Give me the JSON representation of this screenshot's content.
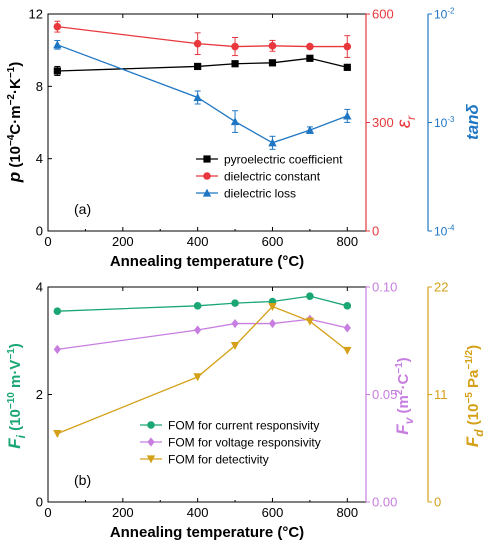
{
  "chart_data": [
    {
      "panel_label": "(a)",
      "type": "line",
      "x": [
        25,
        400,
        500,
        600,
        700,
        800
      ],
      "xlim": [
        0,
        850
      ],
      "xticks": [
        "0",
        "200",
        "400",
        "600",
        "800"
      ],
      "xlabel": "Annealing temperature (°C)",
      "axes": {
        "left": {
          "label": "p (10⁻⁴C·m⁻²·K⁻¹)",
          "ylim": [
            0,
            12
          ],
          "ticks": [
            "0",
            "4",
            "8",
            "12"
          ],
          "color": "#000000"
        },
        "right1": {
          "label": "εr",
          "ylim": [
            0,
            600
          ],
          "ticks": [
            "0",
            "300",
            "600"
          ],
          "color": "#e8383d"
        },
        "right2": {
          "label": "tanδ",
          "scale": "log",
          "ylim": [
            0.0001,
            0.01
          ],
          "ticks": [
            "10⁻⁴",
            "10⁻³",
            "10⁻²"
          ],
          "color": "#1f77c4"
        }
      },
      "series": [
        {
          "name": "pyroelectric coefficient",
          "axis": "left",
          "color": "#000000",
          "marker": "square",
          "values": [
            8.85,
            9.1,
            9.25,
            9.3,
            9.55,
            9.05
          ],
          "errors": [
            0.25,
            0.1,
            0.1,
            0.1,
            0.1,
            0.1
          ]
        },
        {
          "name": "dielectric constant",
          "axis": "right1",
          "color": "#e8383d",
          "marker": "circle",
          "values": [
            565,
            518,
            510,
            512,
            510,
            510
          ],
          "errors": [
            15,
            30,
            25,
            15,
            5,
            30
          ]
        },
        {
          "name": "dielectric loss",
          "axis": "right2",
          "color": "#1f77c4",
          "marker": "triangle-up",
          "values": [
            0.0052,
            0.0017,
            0.00102,
            0.00065,
            0.00085,
            0.00115
          ],
          "errors_log": [
            0.04,
            0.06,
            0.1,
            0.06,
            0.03,
            0.06
          ]
        }
      ]
    },
    {
      "panel_label": "(b)",
      "type": "line",
      "x": [
        25,
        400,
        500,
        600,
        700,
        800
      ],
      "xlim": [
        0,
        850
      ],
      "xticks": [
        "0",
        "200",
        "400",
        "600",
        "800"
      ],
      "xlabel": "Annealing temperature (°C)",
      "axes": {
        "left": {
          "label": "Fi (10⁻¹⁰ m·V⁻¹)",
          "ylim": [
            0,
            4
          ],
          "ticks": [
            "0",
            "2",
            "4"
          ],
          "color": "#1aa774"
        },
        "right1": {
          "label": "Fv (m²·C⁻¹)",
          "ylim": [
            0,
            0.1
          ],
          "ticks": [
            "0.00",
            "0.05",
            "0.10"
          ],
          "color": "#c77ee0"
        },
        "right2": {
          "label": "Fd (10⁻⁵ Pa⁻¹ᐟ²)",
          "ylim": [
            0,
            22
          ],
          "ticks": [
            "0",
            "11",
            "22"
          ],
          "color": "#d4a017"
        }
      },
      "series": [
        {
          "name": "FOM for current responsivity",
          "axis": "left",
          "color": "#1aa774",
          "marker": "circle",
          "values": [
            3.55,
            3.65,
            3.7,
            3.73,
            3.83,
            3.65
          ]
        },
        {
          "name": "FOM for voltage responsivity",
          "axis": "right1",
          "color": "#c77ee0",
          "marker": "diamond",
          "values": [
            0.071,
            0.08,
            0.083,
            0.083,
            0.085,
            0.081
          ]
        },
        {
          "name": "FOM for detectivity",
          "axis": "right2",
          "color": "#d4a017",
          "marker": "triangle-down",
          "values": [
            7.0,
            12.8,
            16.0,
            20.0,
            18.5,
            15.5
          ]
        }
      ]
    }
  ]
}
